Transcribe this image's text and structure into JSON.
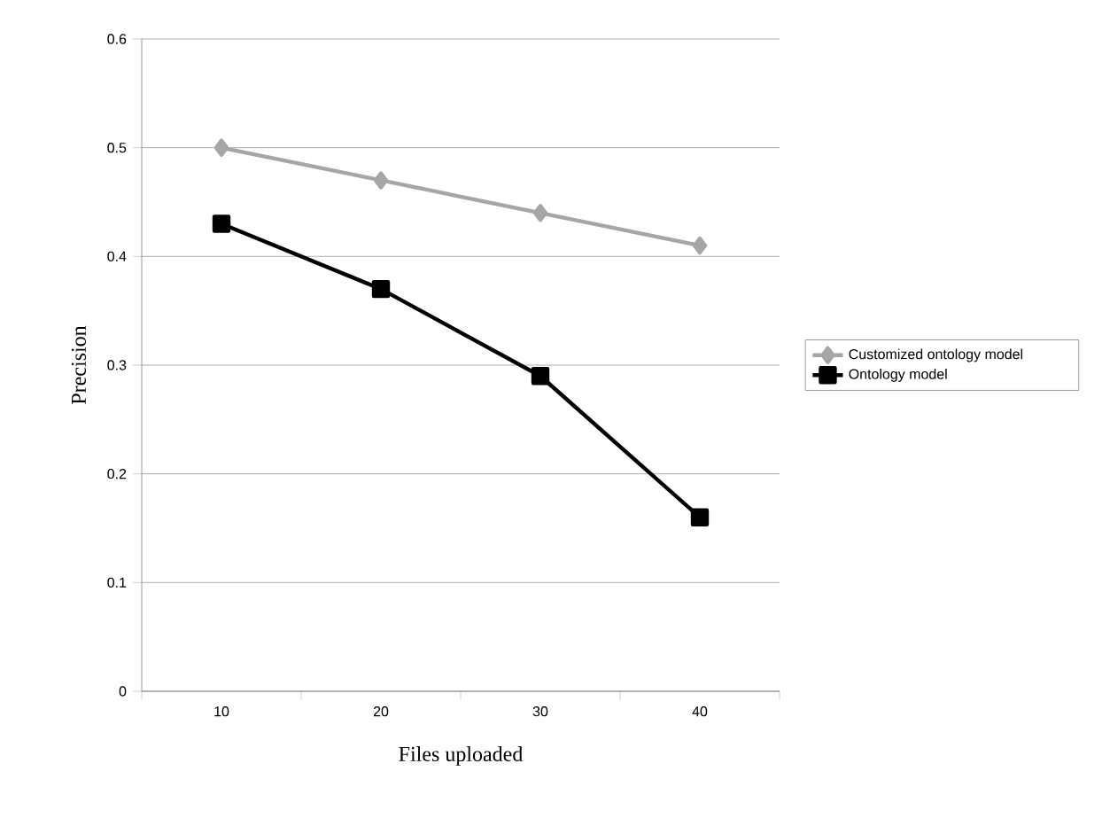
{
  "chart_data": {
    "type": "line",
    "xlabel": "Files uploaded",
    "ylabel": "Precision",
    "categories": [
      "10",
      "20",
      "30",
      "40"
    ],
    "series": [
      {
        "name": "Customized ontology model",
        "color": "#a6a6a6",
        "marker": "diamond",
        "values": [
          0.5,
          0.47,
          0.44,
          0.41
        ]
      },
      {
        "name": "Ontology model",
        "color": "#000000",
        "marker": "square",
        "values": [
          0.43,
          0.37,
          0.29,
          0.16
        ]
      }
    ],
    "ylim": [
      0,
      0.6
    ],
    "yticks": [
      0,
      0.1,
      0.2,
      0.3,
      0.4,
      0.5,
      0.6
    ],
    "grid": "y",
    "legend": "right"
  }
}
